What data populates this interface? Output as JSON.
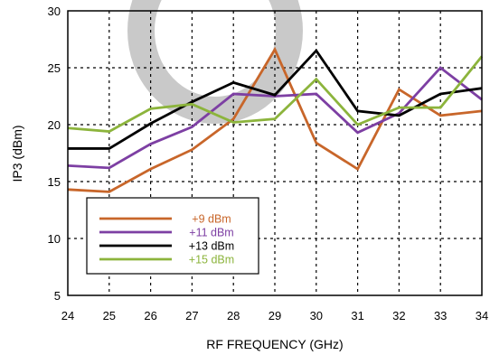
{
  "chart_data": {
    "type": "line",
    "xlabel": "RF FREQUENCY (GHz)",
    "ylabel": "IP3 (dBm)",
    "xlim": [
      24,
      34
    ],
    "ylim": [
      5,
      30
    ],
    "x_ticks": [
      24,
      25,
      26,
      27,
      28,
      29,
      30,
      31,
      32,
      33,
      34
    ],
    "y_ticks": [
      5,
      10,
      15,
      20,
      25,
      30
    ],
    "grid": "dashed",
    "legend_position": "bottom-left",
    "x": [
      24,
      25,
      26,
      27,
      28,
      29,
      30,
      31,
      32,
      33,
      34
    ],
    "series": [
      {
        "name": "+9 dBm",
        "color": "#c8662a",
        "values": [
          14.3,
          14.1,
          16.1,
          17.8,
          20.5,
          26.6,
          18.4,
          16.1,
          23.1,
          20.8,
          21.2
        ]
      },
      {
        "name": "+11 dBm",
        "color": "#7d3fa3",
        "values": [
          16.4,
          16.2,
          18.3,
          19.8,
          22.7,
          22.5,
          22.7,
          19.3,
          21.0,
          25.0,
          22.2
        ]
      },
      {
        "name": "+13 dBm",
        "color": "#000000",
        "values": [
          17.9,
          17.9,
          20.1,
          22.0,
          23.7,
          22.6,
          26.5,
          21.2,
          20.8,
          22.7,
          23.2
        ]
      },
      {
        "name": "+15 dBm",
        "color": "#8cb43c",
        "values": [
          19.7,
          19.4,
          21.4,
          21.8,
          20.2,
          20.5,
          24.0,
          20.0,
          21.5,
          21.5,
          26.0
        ]
      }
    ]
  }
}
